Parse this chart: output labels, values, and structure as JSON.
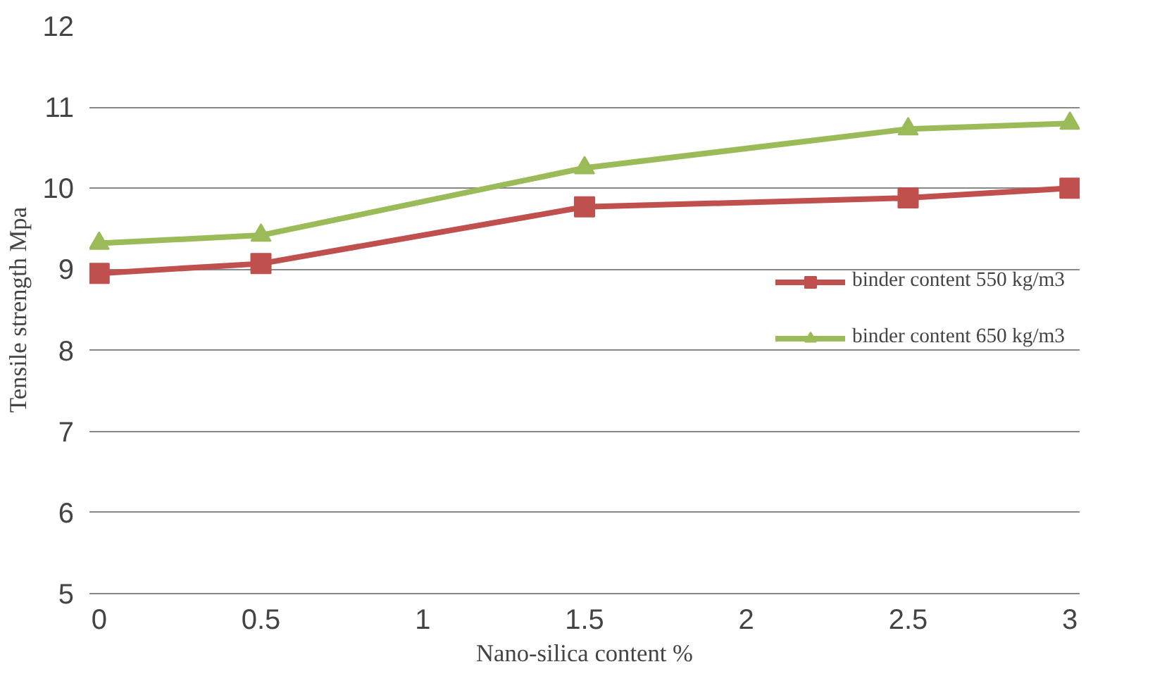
{
  "chart_data": {
    "type": "line",
    "xlabel": "Nano-silica content %",
    "ylabel": "Tensile strength Mpa",
    "x": [
      0,
      0.5,
      1.5,
      2.5,
      3
    ],
    "series": [
      {
        "name": "binder content 550 kg/m3",
        "color": "#c0504d",
        "marker": "square",
        "values": [
          8.95,
          9.07,
          9.77,
          9.88,
          10.0
        ]
      },
      {
        "name": "binder content 650 kg/m3",
        "color": "#9bbb59",
        "marker": "triangle",
        "values": [
          9.32,
          9.42,
          10.25,
          10.73,
          10.8
        ]
      }
    ],
    "xlim": [
      -0.03,
      3.03
    ],
    "xticks": [
      0,
      0.5,
      1,
      1.5,
      2,
      2.5,
      3
    ],
    "ylim": [
      5,
      12
    ],
    "yticks": [
      5,
      6,
      7,
      8,
      9,
      10,
      11,
      12
    ],
    "grid": "y",
    "legend": "right",
    "line_style": "solid"
  }
}
